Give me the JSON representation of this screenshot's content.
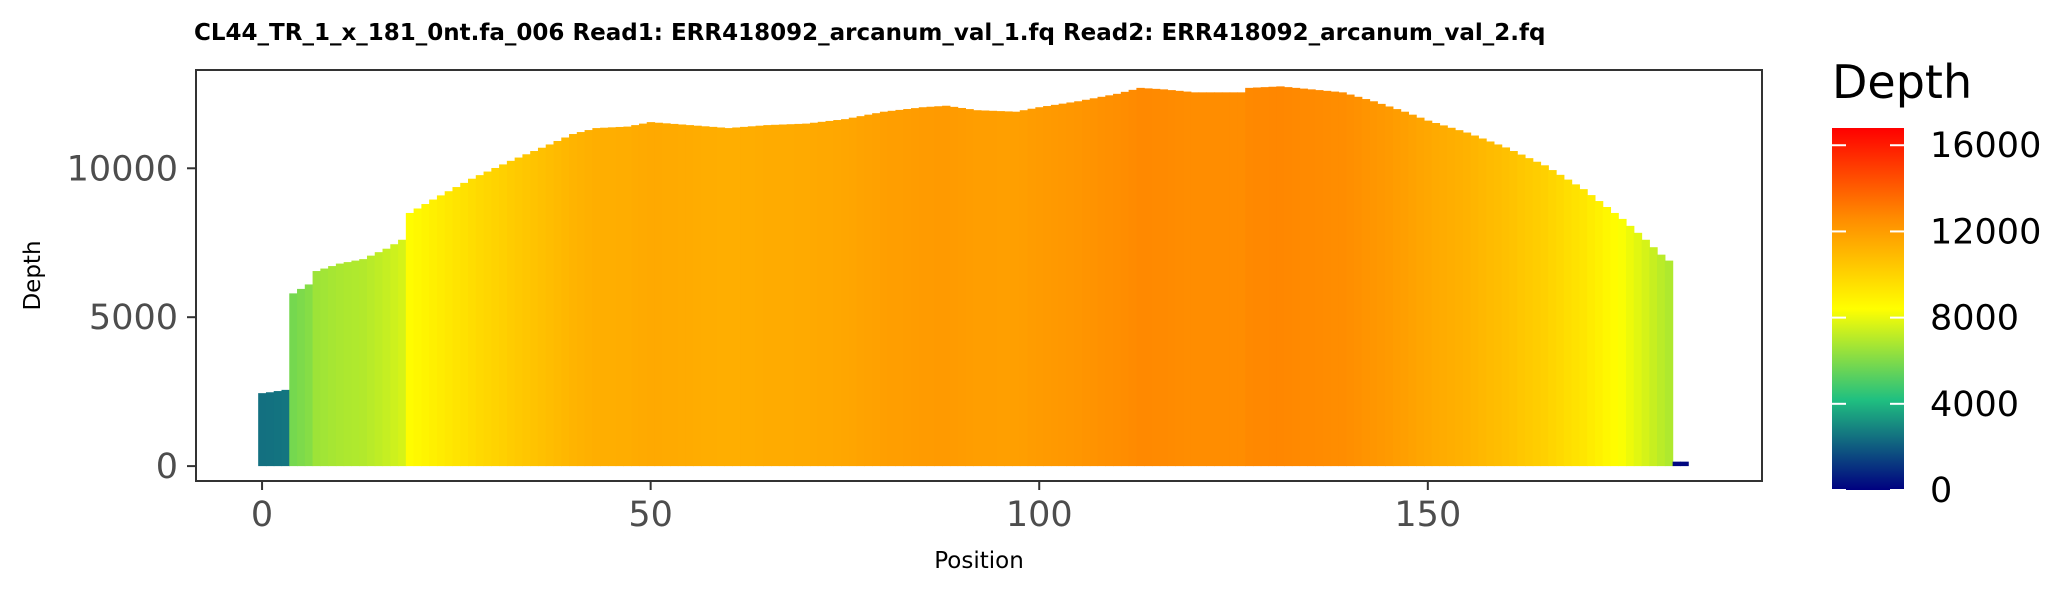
{
  "chart_data": {
    "type": "bar",
    "title": "CL44_TR_1_x_181_0nt.fa_006   Read1: ERR418092_arcanum_val_1.fq   Read2: ERR418092_arcanum_val_2.fq",
    "xlabel": "Position",
    "ylabel": "Depth",
    "xlim": [
      -8.5,
      193
    ],
    "ylim": [
      -500,
      13300
    ],
    "x_ticks": [
      0,
      50,
      100,
      150
    ],
    "y_ticks": [
      0,
      5000,
      10000
    ],
    "grid": false,
    "legend": {
      "title": "Depth",
      "position": "right",
      "ticks": [
        0,
        4000,
        8000,
        12000,
        16000
      ],
      "range": [
        0,
        16800
      ],
      "colors": [
        "#000080",
        "#20C080",
        "#FFFF00",
        "#FF8C00",
        "#FF0000"
      ]
    },
    "control_points": [
      [
        0,
        2450
      ],
      [
        1,
        2480
      ],
      [
        2,
        2520
      ],
      [
        3,
        2560
      ],
      [
        4,
        5800
      ],
      [
        5,
        5950
      ],
      [
        6,
        6100
      ],
      [
        7,
        6550
      ],
      [
        10,
        6800
      ],
      [
        13,
        6950
      ],
      [
        16,
        7300
      ],
      [
        18,
        7600
      ],
      [
        19,
        8500
      ],
      [
        22,
        8950
      ],
      [
        27,
        9650
      ],
      [
        32,
        10250
      ],
      [
        37,
        10800
      ],
      [
        40,
        11150
      ],
      [
        43,
        11350
      ],
      [
        47,
        11400
      ],
      [
        50,
        11550
      ],
      [
        55,
        11450
      ],
      [
        60,
        11350
      ],
      [
        65,
        11450
      ],
      [
        70,
        11500
      ],
      [
        75,
        11650
      ],
      [
        80,
        11900
      ],
      [
        85,
        12050
      ],
      [
        88,
        12100
      ],
      [
        92,
        11950
      ],
      [
        97,
        11900
      ],
      [
        100,
        12050
      ],
      [
        105,
        12250
      ],
      [
        110,
        12500
      ],
      [
        113,
        12700
      ],
      [
        116,
        12650
      ],
      [
        120,
        12550
      ],
      [
        126,
        12550
      ],
      [
        127,
        12700
      ],
      [
        131,
        12750
      ],
      [
        135,
        12650
      ],
      [
        139,
        12550
      ],
      [
        143,
        12250
      ],
      [
        147,
        11900
      ],
      [
        150,
        11600
      ],
      [
        155,
        11200
      ],
      [
        160,
        10700
      ],
      [
        165,
        10100
      ],
      [
        170,
        9300
      ],
      [
        175,
        8300
      ],
      [
        178,
        7600
      ],
      [
        180,
        7100
      ],
      [
        181,
        6900
      ],
      [
        182,
        150
      ],
      [
        183,
        150
      ]
    ]
  }
}
